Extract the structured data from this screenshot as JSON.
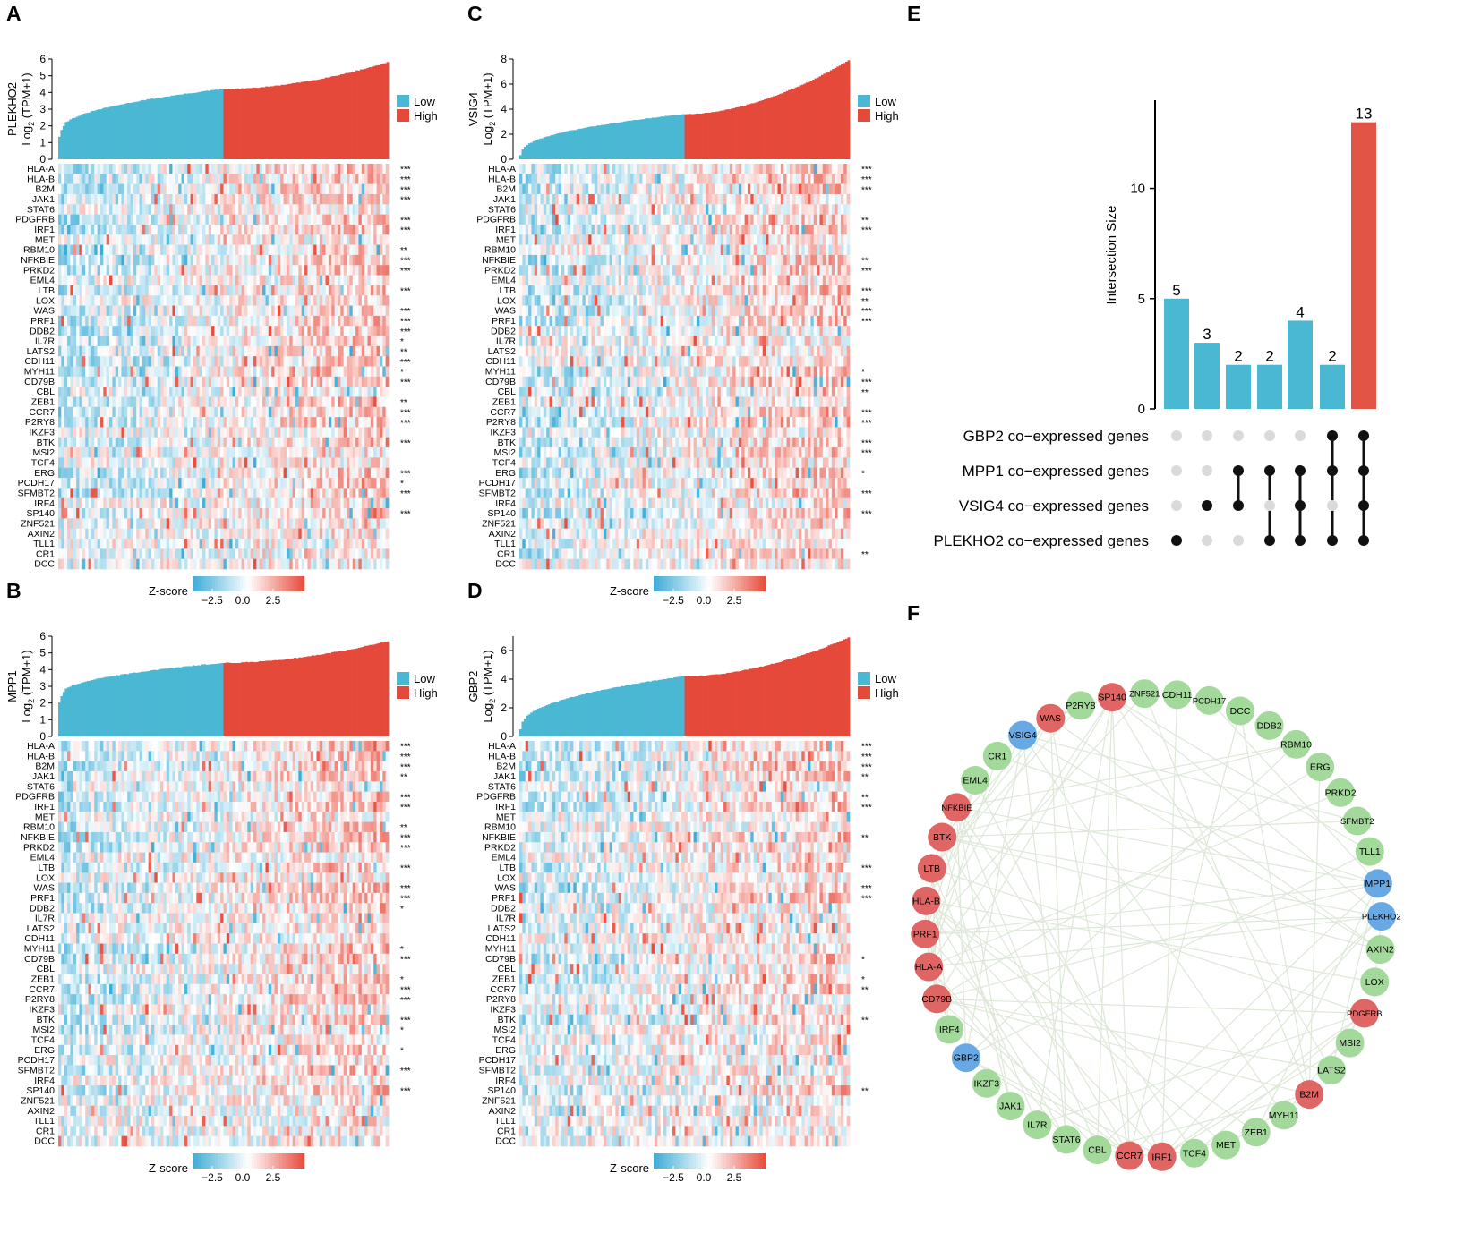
{
  "colors": {
    "low": "#4ab7d3",
    "high": "#e5493a",
    "upset_bar": "#4ab7d3",
    "upset_highlight": "#e25446",
    "dot_on": "#111111",
    "dot_off": "#dadada",
    "node_red": "#e06666",
    "node_green": "#a3d99a",
    "node_blue": "#68a8e4",
    "edge": "#dde8d8"
  },
  "genes": [
    "HLA-A",
    "HLA-B",
    "B2M",
    "JAK1",
    "STAT6",
    "PDGFRB",
    "IRF1",
    "MET",
    "RBM10",
    "NFKBIE",
    "PRKD2",
    "EML4",
    "LTB",
    "LOX",
    "WAS",
    "PRF1",
    "DDB2",
    "IL7R",
    "LATS2",
    "CDH11",
    "MYH11",
    "CD79B",
    "CBL",
    "ZEB1",
    "CCR7",
    "P2RY8",
    "IKZF3",
    "BTK",
    "MSI2",
    "TCF4",
    "ERG",
    "PCDH17",
    "SFMBT2",
    "IRF4",
    "SP140",
    "ZNF521",
    "AXIN2",
    "TLL1",
    "CR1",
    "DCC"
  ],
  "heatmap_panels": [
    {
      "letter": "A",
      "gene": "PLEKHO2",
      "ylabel_main": "Log",
      "ylabel_sub": "2",
      "ylabel_tail": " (TPM+1)",
      "y_ticks": [
        "0",
        "1",
        "2",
        "3",
        "4",
        "5",
        "6"
      ],
      "y_max": 6,
      "bar_start": 1.6,
      "bar_split": 4.2,
      "bar_end": 5.8,
      "legend_low": "Low",
      "legend_high": "High",
      "zscore_label": "Z-score",
      "zscore_ticks": [
        "−2.5",
        "0.0",
        "2.5"
      ],
      "stars": [
        "***",
        "***",
        "***",
        "***",
        "",
        "***",
        "***",
        "",
        "**",
        "***",
        "***",
        "",
        "***",
        "",
        "***",
        "***",
        "***",
        "*",
        "**",
        "***",
        "*",
        "***",
        "",
        "**",
        "***",
        "***",
        "",
        "***",
        "",
        "",
        "***",
        "*",
        "***",
        "",
        "***",
        "",
        "",
        "",
        "",
        ""
      ]
    },
    {
      "letter": "C",
      "gene": "VSIG4",
      "ylabel_main": "Log",
      "ylabel_sub": "2",
      "ylabel_tail": " (TPM+1)",
      "y_ticks": [
        "0",
        "2",
        "4",
        "6",
        "8"
      ],
      "y_max": 8,
      "bar_start": 0.4,
      "bar_split": 3.6,
      "bar_end": 7.9,
      "legend_low": "Low",
      "legend_high": "High",
      "zscore_label": "Z-score",
      "zscore_ticks": [
        "−2.5",
        "0.0",
        "2.5"
      ],
      "stars": [
        "***",
        "***",
        "***",
        "",
        "",
        "**",
        "***",
        "",
        "",
        "**",
        "***",
        "",
        "***",
        "**",
        "***",
        "***",
        "",
        "",
        "",
        "",
        "*",
        "***",
        "**",
        "",
        "***",
        "***",
        "",
        "***",
        "***",
        "",
        "*",
        "",
        "***",
        "",
        "***",
        "",
        "",
        "",
        "**",
        ""
      ]
    },
    {
      "letter": "B",
      "gene": "MPP1",
      "ylabel_main": "Log",
      "ylabel_sub": "2",
      "ylabel_tail": " (TPM+1)",
      "y_ticks": [
        "0",
        "1",
        "2",
        "3",
        "4",
        "5",
        "6"
      ],
      "y_max": 6,
      "bar_start": 2.4,
      "bar_split": 4.4,
      "bar_end": 5.7,
      "legend_low": "Low",
      "legend_high": "High",
      "zscore_label": "Z-score",
      "zscore_ticks": [
        "−2.5",
        "0.0",
        "2.5"
      ],
      "stars": [
        "***",
        "***",
        "***",
        "**",
        "",
        "***",
        "***",
        "",
        "**",
        "***",
        "***",
        "",
        "***",
        "",
        "***",
        "***",
        "*",
        "",
        "",
        "",
        "*",
        "***",
        "",
        "*",
        "***",
        "***",
        "",
        "***",
        "*",
        "",
        "*",
        "",
        "***",
        "",
        "***",
        "",
        "",
        "",
        "",
        ""
      ]
    },
    {
      "letter": "D",
      "gene": "GBP2",
      "ylabel_main": "Log",
      "ylabel_sub": "2",
      "ylabel_tail": " (TPM+1)",
      "y_ticks": [
        "0",
        "2",
        "4",
        "6"
      ],
      "y_max": 7,
      "bar_start": 0.6,
      "bar_split": 4.2,
      "bar_end": 6.9,
      "legend_low": "Low",
      "legend_high": "High",
      "zscore_label": "Z-score",
      "zscore_ticks": [
        "−2.5",
        "0.0",
        "2.5"
      ],
      "stars": [
        "***",
        "***",
        "***",
        "**",
        "",
        "**",
        "***",
        "",
        "",
        "**",
        "",
        "",
        "***",
        "",
        "***",
        "***",
        "",
        "",
        "",
        "",
        "",
        "*",
        "",
        "*",
        "**",
        "",
        "",
        "**",
        "",
        "",
        "",
        "",
        "",
        "",
        "**",
        "",
        "",
        "",
        "",
        ""
      ]
    }
  ],
  "upset": {
    "letter": "E",
    "ylabel": "Intersection Size",
    "y_ticks": [
      "0",
      "5",
      "10"
    ],
    "y_max": 14,
    "sets": [
      "GBP2 co−expressed genes",
      "MPP1 co−expressed genes",
      "VSIG4 co−expressed genes",
      "PLEKHO2 co−expressed genes"
    ],
    "bars": [
      {
        "value": 5,
        "label": "5",
        "members": [
          3
        ]
      },
      {
        "value": 3,
        "label": "3",
        "members": [
          2
        ]
      },
      {
        "value": 2,
        "label": "2",
        "members": [
          1,
          2
        ]
      },
      {
        "value": 2,
        "label": "2",
        "members": [
          1,
          3
        ]
      },
      {
        "value": 4,
        "label": "4",
        "members": [
          1,
          2,
          3
        ]
      },
      {
        "value": 2,
        "label": "2",
        "members": [
          0,
          1,
          3
        ]
      },
      {
        "value": 13,
        "label": "13",
        "members": [
          0,
          1,
          2,
          3
        ]
      }
    ]
  },
  "network": {
    "letter": "F",
    "nodes": [
      {
        "label": "CDH11",
        "color": "green"
      },
      {
        "label": "PCDH17",
        "color": "green"
      },
      {
        "label": "DCC",
        "color": "green"
      },
      {
        "label": "DDB2",
        "color": "green"
      },
      {
        "label": "RBM10",
        "color": "green"
      },
      {
        "label": "ERG",
        "color": "green"
      },
      {
        "label": "PRKD2",
        "color": "green"
      },
      {
        "label": "SFMBT2",
        "color": "green"
      },
      {
        "label": "TLL1",
        "color": "green"
      },
      {
        "label": "MPP1",
        "color": "blue"
      },
      {
        "label": "PLEKHO2",
        "color": "blue"
      },
      {
        "label": "AXIN2",
        "color": "green"
      },
      {
        "label": "LOX",
        "color": "green"
      },
      {
        "label": "PDGFRB",
        "color": "red"
      },
      {
        "label": "MSI2",
        "color": "green"
      },
      {
        "label": "LATS2",
        "color": "green"
      },
      {
        "label": "B2M",
        "color": "red"
      },
      {
        "label": "MYH11",
        "color": "green"
      },
      {
        "label": "ZEB1",
        "color": "green"
      },
      {
        "label": "MET",
        "color": "green"
      },
      {
        "label": "TCF4",
        "color": "green"
      },
      {
        "label": "IRF1",
        "color": "red"
      },
      {
        "label": "CCR7",
        "color": "red"
      },
      {
        "label": "CBL",
        "color": "green"
      },
      {
        "label": "STAT6",
        "color": "green"
      },
      {
        "label": "IL7R",
        "color": "green"
      },
      {
        "label": "JAK1",
        "color": "green"
      },
      {
        "label": "IKZF3",
        "color": "green"
      },
      {
        "label": "GBP2",
        "color": "blue"
      },
      {
        "label": "IRF4",
        "color": "green"
      },
      {
        "label": "CD79B",
        "color": "red"
      },
      {
        "label": "HLA-A",
        "color": "red"
      },
      {
        "label": "PRF1",
        "color": "red"
      },
      {
        "label": "HLA-B",
        "color": "red"
      },
      {
        "label": "LTB",
        "color": "red"
      },
      {
        "label": "BTK",
        "color": "red"
      },
      {
        "label": "NFKBIE",
        "color": "red"
      },
      {
        "label": "EML4",
        "color": "green"
      },
      {
        "label": "CR1",
        "color": "green"
      },
      {
        "label": "VSIG4",
        "color": "blue"
      },
      {
        "label": "WAS",
        "color": "red"
      },
      {
        "label": "P2RY8",
        "color": "green"
      },
      {
        "label": "SP140",
        "color": "red"
      },
      {
        "label": "ZNF521",
        "color": "green"
      }
    ]
  }
}
